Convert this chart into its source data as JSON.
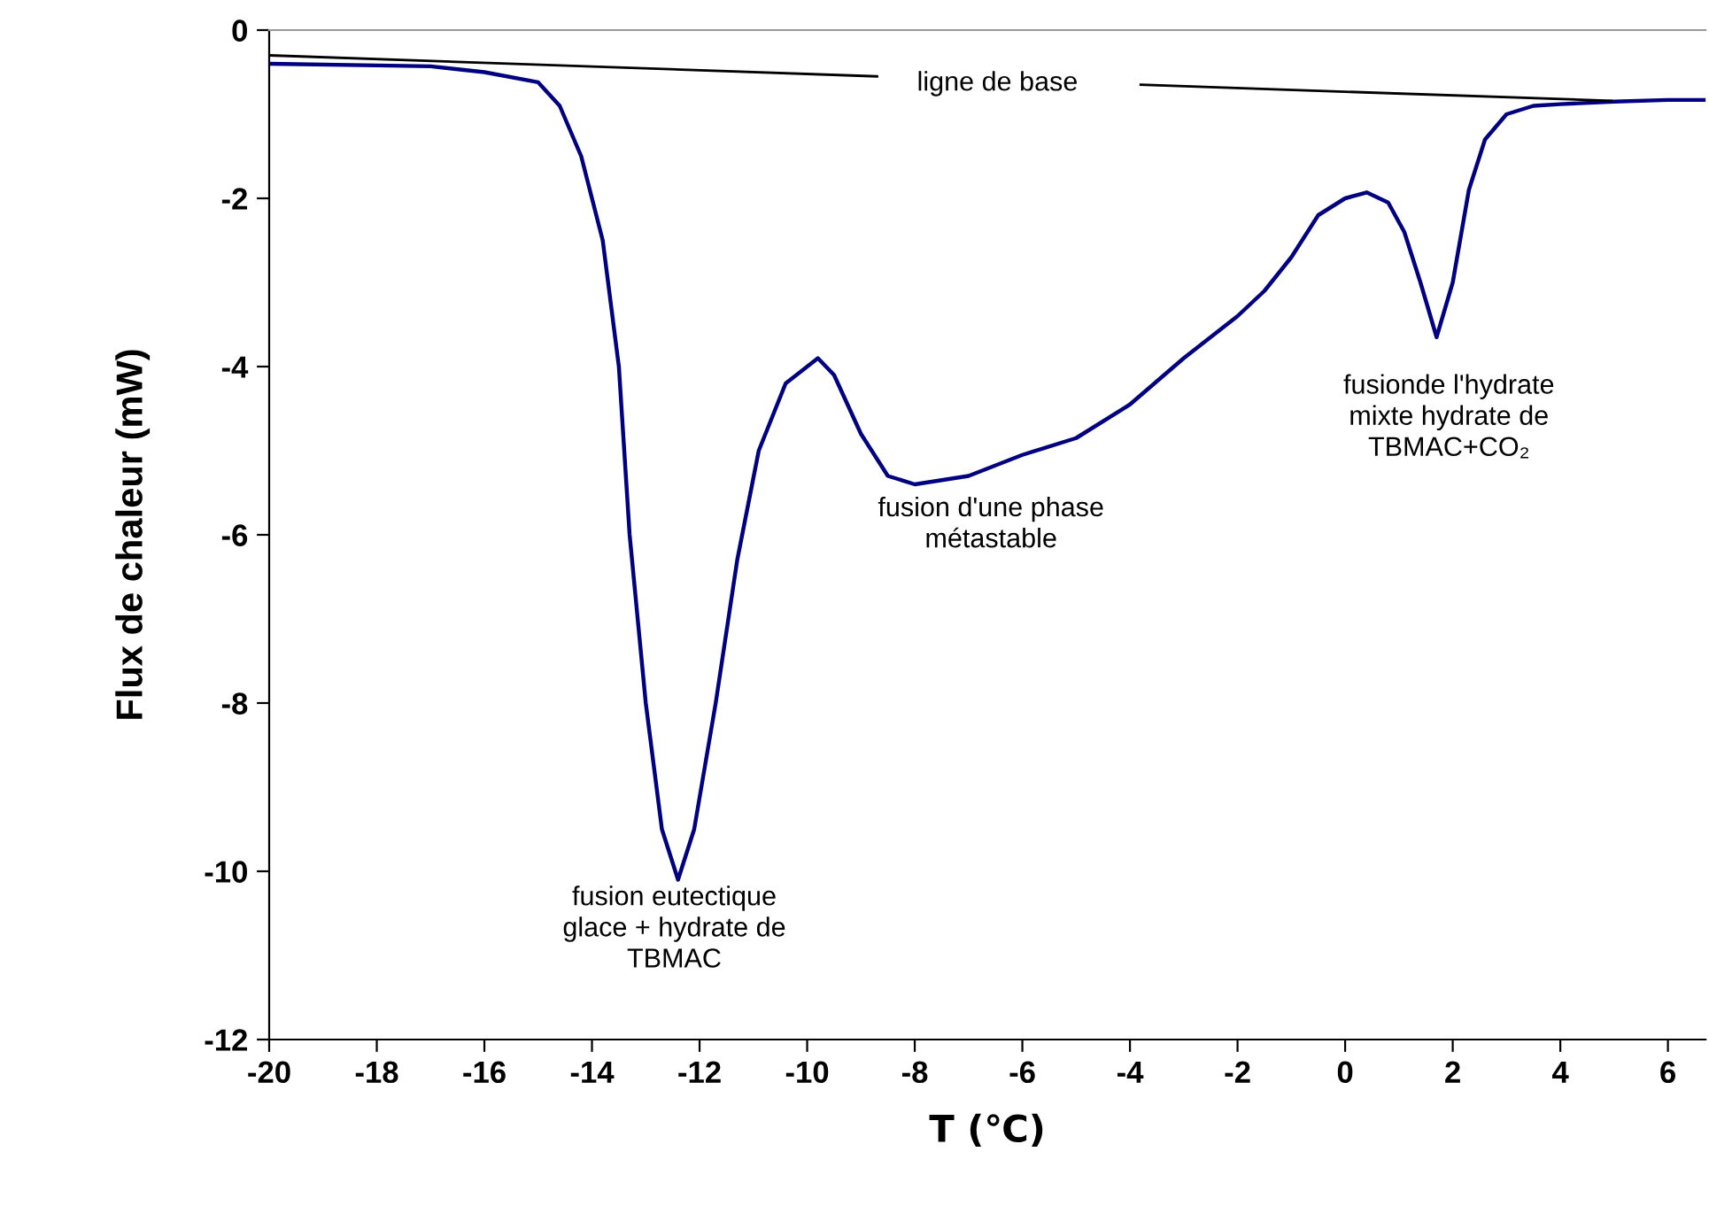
{
  "chart_data": {
    "type": "line",
    "xlabel": "T (℃)",
    "ylabel": "Flux de chaleur (mW)",
    "xlim": [
      -20,
      6.7
    ],
    "xticks": [
      -20,
      -18,
      -16,
      -14,
      -12,
      -10,
      -8,
      -6,
      -4,
      -2,
      0,
      2,
      4,
      6
    ],
    "ylim": [
      -12,
      0
    ],
    "yticks": [
      -12,
      -10,
      -8,
      -6,
      -4,
      -2,
      0
    ],
    "grid": false,
    "marker": "none",
    "line_style": "solid",
    "series": [
      {
        "color": "#000080",
        "x": [
          -20,
          -18,
          -17,
          -16,
          -15,
          -14.6,
          -14.2,
          -13.8,
          -13.5,
          -13.3,
          -13.0,
          -12.7,
          -12.4,
          -12.1,
          -11.7,
          -11.3,
          -10.9,
          -10.4,
          -9.8,
          -9.5,
          -9.0,
          -8.5,
          -8.0,
          -7,
          -6,
          -5,
          -4,
          -3,
          -2,
          -1.5,
          -1,
          -0.5,
          0,
          0.4,
          0.8,
          1.1,
          1.4,
          1.7,
          2.0,
          2.3,
          2.6,
          3,
          3.5,
          4,
          5,
          6,
          6.7
        ],
        "values": [
          -0.4,
          -0.42,
          -0.43,
          -0.5,
          -0.62,
          -0.9,
          -1.5,
          -2.5,
          -4,
          -6,
          -8,
          -9.5,
          -10.1,
          -9.5,
          -8,
          -6.3,
          -5.0,
          -4.2,
          -3.9,
          -4.1,
          -4.8,
          -5.3,
          -5.4,
          -5.3,
          -5.05,
          -4.85,
          -4.45,
          -3.9,
          -3.4,
          -3.1,
          -2.7,
          -2.2,
          -2.0,
          -1.93,
          -2.05,
          -2.4,
          -3.0,
          -3.65,
          -3.0,
          -1.9,
          -1.3,
          -1.0,
          -0.9,
          -0.88,
          -0.85,
          -0.83,
          -0.83
        ]
      },
      {
        "color": "#000000",
        "x": [
          -20,
          -8.7,
          -6,
          -3.8,
          4.95
        ],
        "values": [
          -0.3,
          -0.55,
          null,
          -0.65,
          -0.84
        ]
      }
    ],
    "annotations": [
      "ligne de base",
      {
        "text": "fusion eutectique\nglace + hydrate de\nTBMAC",
        "x": -12.47,
        "y": -10.17
      },
      {
        "text": "fusion d'une phase\nmétastable",
        "x": -8.0,
        "y": -5.4
      },
      {
        "text": "fusionde l'hydrate\nmixte hydrate de\nTBMAC+CO₂",
        "x": 1.7,
        "y": -3.65
      }
    ]
  }
}
